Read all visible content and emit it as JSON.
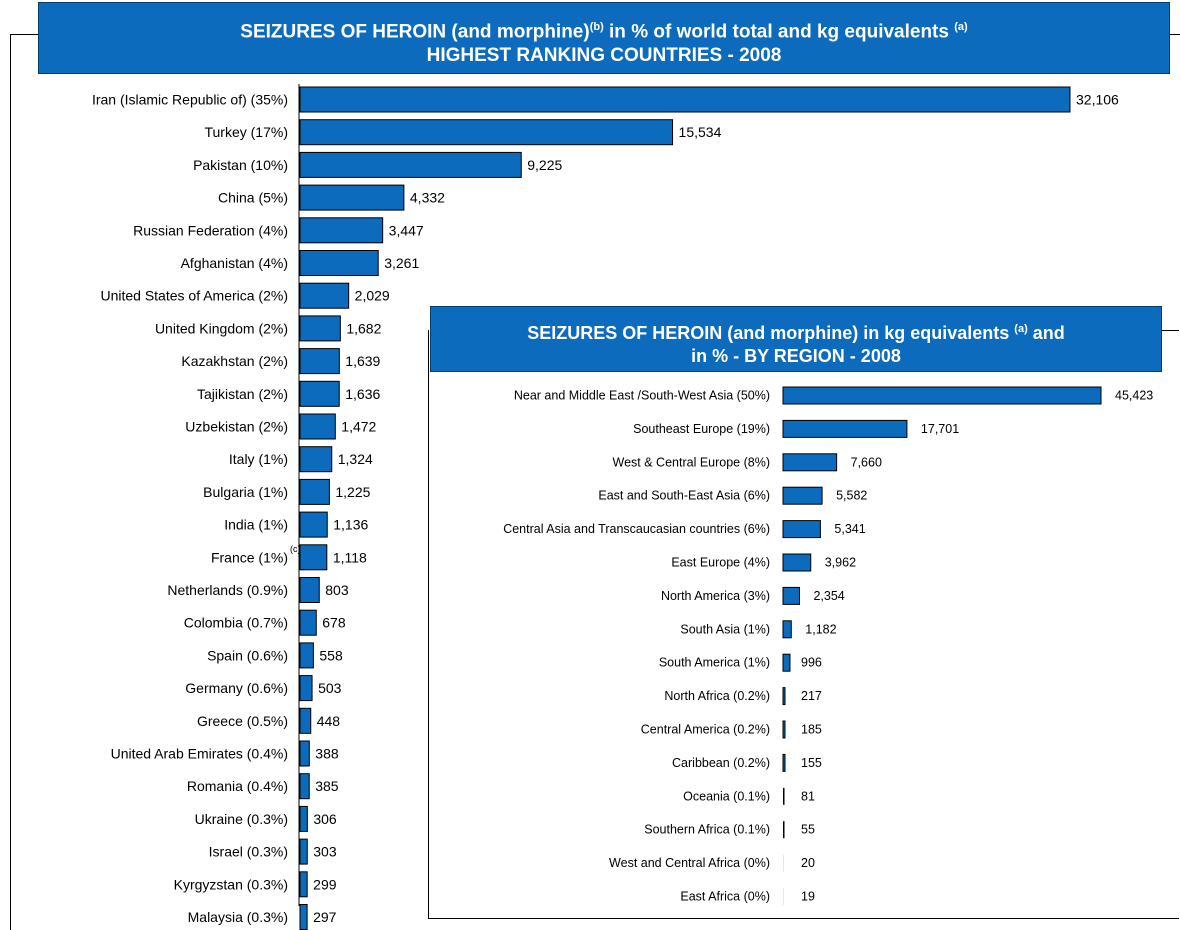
{
  "chart_data": [
    {
      "type": "bar",
      "orientation": "horizontal",
      "title_line1": "SEIZURES OF HEROIN (and morphine)",
      "title_sup1": "(b)",
      "title_line1_rest": " in % of world total and kg equivalents ",
      "title_sup2": "(a)",
      "title_line2": "HIGHEST RANKING COUNTRIES - 2008",
      "categories": [
        "Iran (Islamic Republic of) (35%)",
        "Turkey (17%)",
        "Pakistan (10%)",
        "China (5%)",
        "Russian Federation (4%)",
        "Afghanistan (4%)",
        "United States of America (2%)",
        "United Kingdom (2%)",
        "Kazakhstan (2%)",
        "Tajikistan (2%)",
        "Uzbekistan (2%)",
        "Italy (1%)",
        "Bulgaria (1%)",
        "India (1%)",
        "France (1%)",
        "Netherlands (0.9%)",
        "Colombia (0.7%)",
        "Spain (0.6%)",
        "Germany (0.6%)",
        "Greece (0.5%)",
        "United Arab Emirates (0.4%)",
        "Romania (0.4%)",
        "Ukraine (0.3%)",
        "Israel (0.3%)",
        "Kyrgyzstan (0.3%)",
        "Malaysia (0.3%)"
      ],
      "values": [
        32106,
        15534,
        9225,
        4332,
        3447,
        3261,
        2029,
        1682,
        1639,
        1636,
        1472,
        1324,
        1225,
        1136,
        1118,
        803,
        678,
        558,
        503,
        448,
        388,
        385,
        306,
        303,
        299,
        297
      ],
      "data_labels": [
        "32,106",
        "15,534",
        "9,225",
        "4,332",
        "3,447",
        "3,261",
        "2,029",
        "1,682",
        "1,639",
        "1,636",
        "1,472",
        "1,324",
        "1,225",
        "1,136",
        "1,118",
        "803",
        "678",
        "558",
        "503",
        "448",
        "388",
        "385",
        "306",
        "303",
        "299",
        "297"
      ],
      "footnote_marks": {
        "France (1%)": "(c)"
      },
      "bar_color": "#0d6bbd",
      "grid": false
    },
    {
      "type": "bar",
      "orientation": "horizontal",
      "title_line1": "SEIZURES OF HEROIN (and morphine) in kg equivalents ",
      "title_sup": "(a)",
      "title_line1_rest": " and",
      "title_line2": "in % - BY REGION - 2008",
      "categories": [
        "Near and Middle East /South-West Asia (50%)",
        "Southeast Europe (19%)",
        "West & Central Europe (8%)",
        "East and South-East Asia (6%)",
        "Central Asia and Transcaucasian countries (6%)",
        "East Europe (4%)",
        "North America (3%)",
        "South Asia (1%)",
        "South America (1%)",
        "North Africa (0.2%)",
        "Central America (0.2%)",
        "Caribbean (0.2%)",
        "Oceania (0.1%)",
        "Southern Africa (0.1%)",
        "West and Central Africa (0%)",
        "East Africa (0%)"
      ],
      "values": [
        45423,
        17701,
        7660,
        5582,
        5341,
        3962,
        2354,
        1182,
        996,
        217,
        185,
        155,
        81,
        55,
        20,
        19
      ],
      "data_labels": [
        "45,423",
        "17,701",
        "7,660",
        "5,582",
        "5,341",
        "3,962",
        "2,354",
        "1,182",
        "996",
        "217",
        "185",
        "155",
        "81",
        "55",
        "20",
        "19"
      ],
      "bar_color": "#0d6bbd",
      "grid": false
    }
  ]
}
